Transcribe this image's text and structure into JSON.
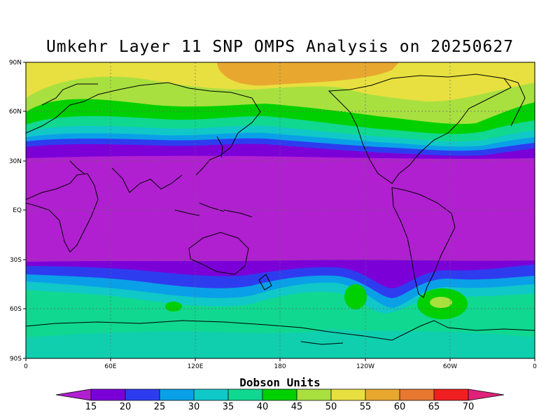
{
  "title": "Umkehr Layer 11 SNP OMPS Analysis on 20250627",
  "map": {
    "lat_ticks": [
      "90N",
      "60N",
      "30N",
      "EQ",
      "30S",
      "60S",
      "90S"
    ],
    "lon_ticks": [
      "0",
      "60E",
      "120E",
      "180",
      "120W",
      "60W",
      "0"
    ],
    "colors": {
      "lt15": "#b020d0",
      "15": "#7b00d8",
      "20": "#2e3cf0",
      "25": "#0aa0e8",
      "30": "#10c8c8",
      "35": "#10d890",
      "40": "#00d000",
      "45": "#a8e040",
      "50": "#e8e040",
      "55": "#e8a830",
      "60": "#e87830",
      "65": "#f02020",
      "gt70": "#e0207a"
    }
  },
  "colorbar": {
    "title": "Dobson Units",
    "labels": [
      "15",
      "20",
      "25",
      "30",
      "35",
      "40",
      "45",
      "50",
      "55",
      "60",
      "65",
      "70"
    ]
  }
}
